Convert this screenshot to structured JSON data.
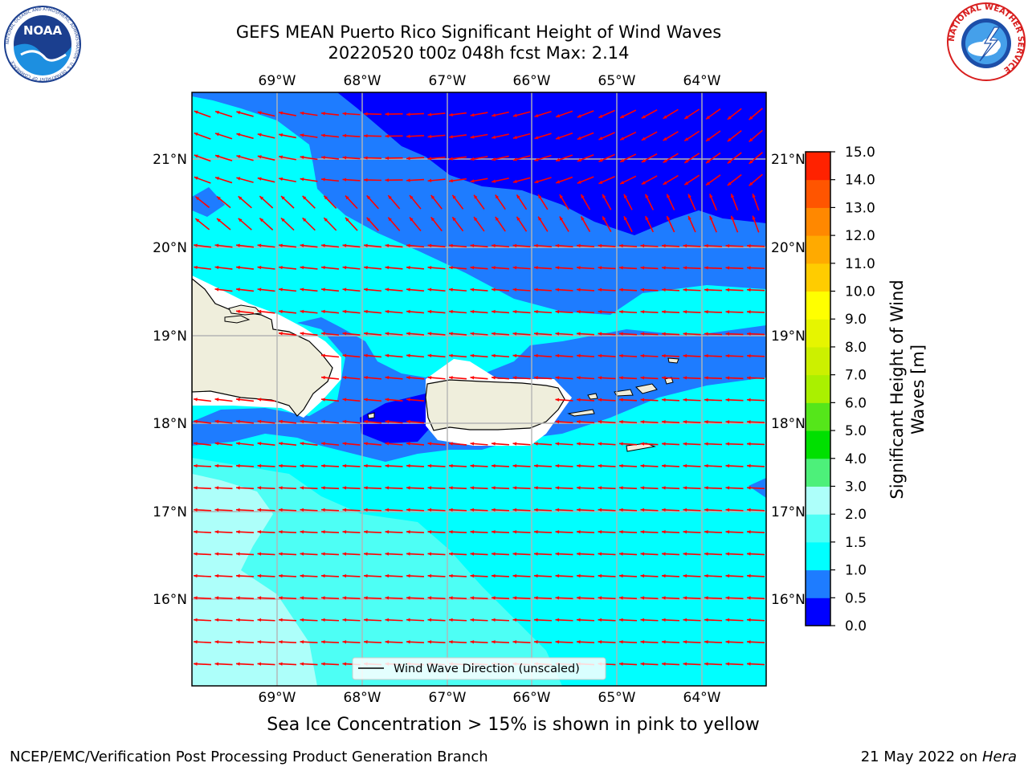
{
  "title": {
    "line1": "GEFS MEAN Puerto Rico Significant Height of Wind Waves",
    "line2": "20220520 t00z 048h fcst   Max: 2.14"
  },
  "logos": {
    "noaa_text": "NOAA",
    "noaa_ring": "NATIONAL OCEANIC AND ATMOSPHERIC ADMINISTRATION · U.S. DEPARTMENT OF COMMERCE",
    "nws_ring": "NATIONAL WEATHER SERVICE"
  },
  "map": {
    "lon_labels": [
      "69°W",
      "68°W",
      "67°W",
      "66°W",
      "65°W",
      "64°W"
    ],
    "lat_labels": [
      "21°N",
      "20°N",
      "19°N",
      "18°N",
      "17°N",
      "16°N"
    ],
    "legend_label": "Wind Wave Direction (unscaled)",
    "arrow_color": "#ff0000",
    "land_color": "#efeedc"
  },
  "colorbar": {
    "label": "Significant Height of Wind Waves [m]",
    "ticks": [
      "15.0",
      "14.0",
      "13.0",
      "12.0",
      "11.0",
      "10.0",
      "9.0",
      "8.0",
      "7.0",
      "6.0",
      "5.0",
      "4.0",
      "3.0",
      "2.0",
      "1.5",
      "1.0",
      "0.5",
      "0.0"
    ],
    "levels": [
      {
        "range": "0.0-0.5",
        "color": "#0000ff"
      },
      {
        "range": "0.5-1.0",
        "color": "#1e7cff"
      },
      {
        "range": "1.0-1.5",
        "color": "#00ffff"
      },
      {
        "range": "1.5-2.0",
        "color": "#4dfff5"
      },
      {
        "range": "2.0-3.0",
        "color": "#adfffa"
      },
      {
        "range": "3.0-4.0",
        "color": "#4df07a"
      },
      {
        "range": "4.0-5.0",
        "color": "#00e000"
      },
      {
        "range": "5.0-6.0",
        "color": "#55e61a"
      },
      {
        "range": "6.0-7.0",
        "color": "#aaf000"
      },
      {
        "range": "7.0-8.0",
        "color": "#ccf000"
      },
      {
        "range": "8.0-9.0",
        "color": "#e6f500"
      },
      {
        "range": "9.0-10.0",
        "color": "#ffff00"
      },
      {
        "range": "10.0-11.0",
        "color": "#ffcc00"
      },
      {
        "range": "11.0-12.0",
        "color": "#ffaa00"
      },
      {
        "range": "12.0-13.0",
        "color": "#ff8800"
      },
      {
        "range": "13.0-14.0",
        "color": "#ff5500"
      },
      {
        "range": "14.0-15.0",
        "color": "#ff2200"
      }
    ]
  },
  "subtitle": "Sea Ice Concentration > 15% is shown in pink to yellow",
  "footer": {
    "left": "NCEP/EMC/Verification Post Processing Product Generation Branch",
    "right_prefix": "21 May 2022 on ",
    "right_host": "Hera"
  }
}
